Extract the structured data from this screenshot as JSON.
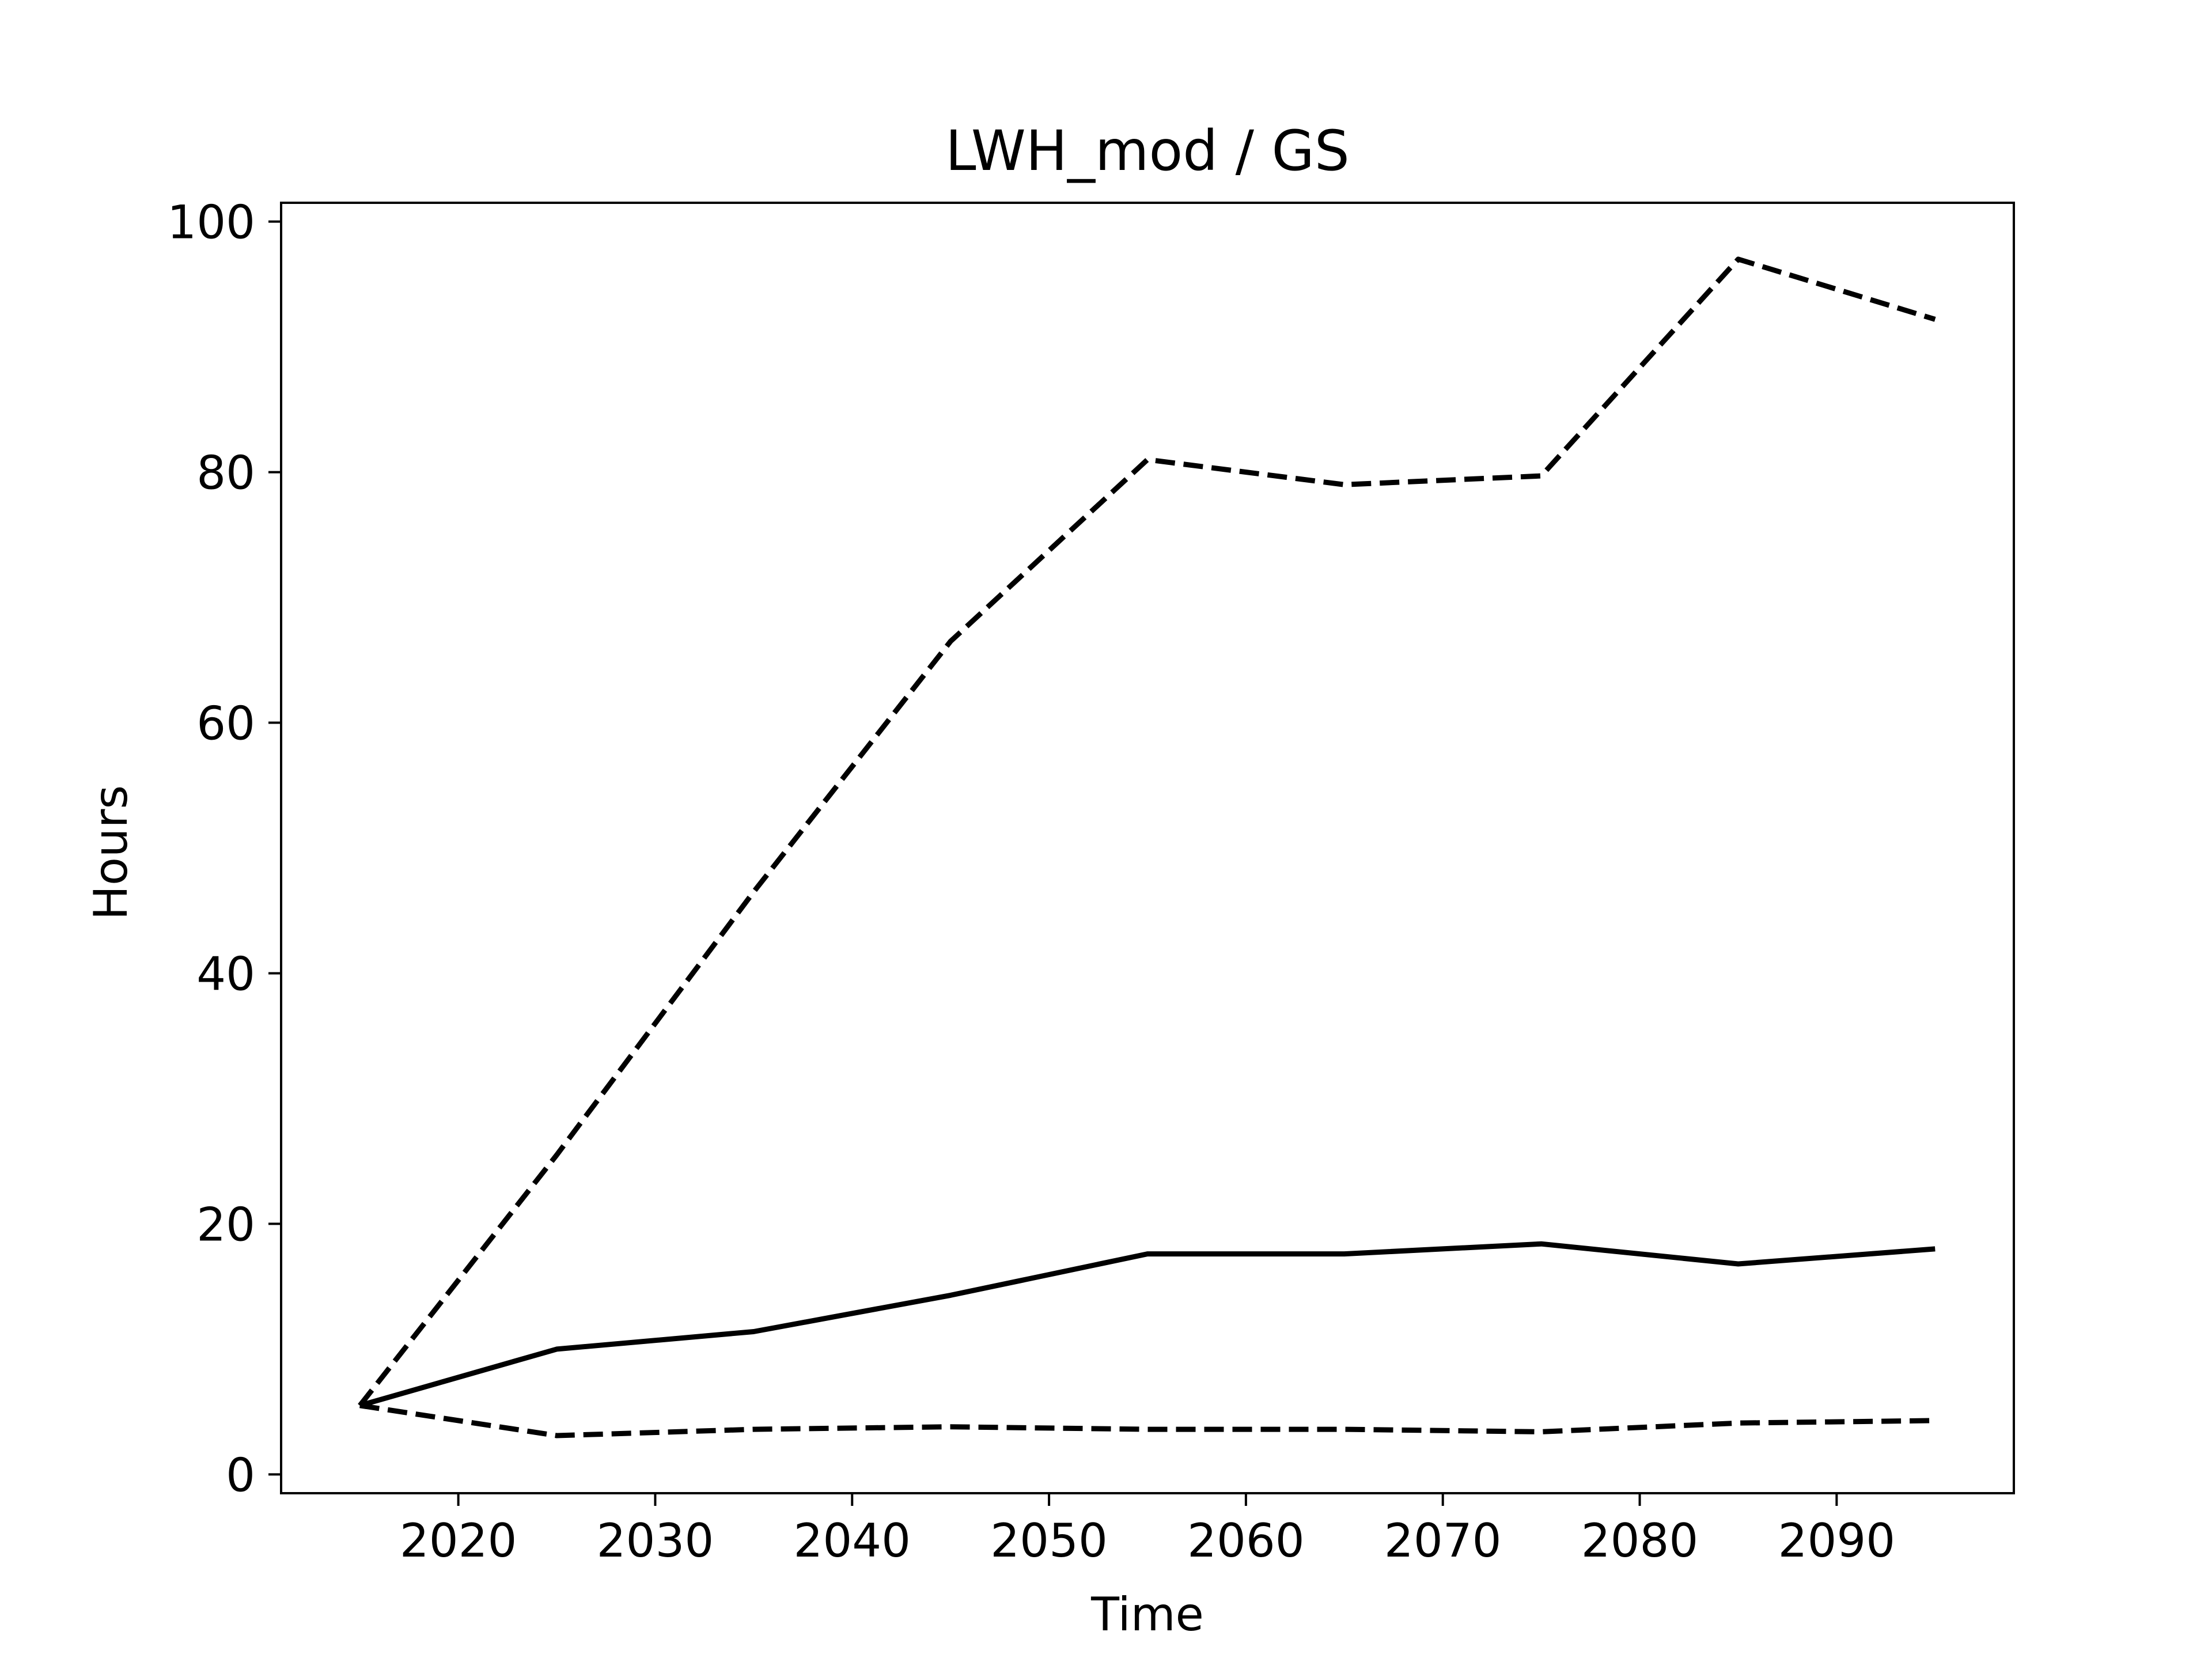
{
  "chart_data": {
    "type": "line",
    "title": "LWH_mod / GS",
    "xlabel": "Time",
    "ylabel": "Hours",
    "xlim": [
      2011,
      2099
    ],
    "ylim": [
      -1.5,
      101.5
    ],
    "xticks": [
      2020,
      2030,
      2040,
      2050,
      2060,
      2070,
      2080,
      2090
    ],
    "yticks": [
      0,
      20,
      40,
      60,
      80,
      100
    ],
    "grid": false,
    "legend": "none",
    "colors": {
      "line": "#000000",
      "axes": "#000000",
      "background": "#ffffff"
    },
    "x": [
      2015,
      2025,
      2035,
      2045,
      2055,
      2065,
      2075,
      2085,
      2095
    ],
    "series": [
      {
        "style": "dashed",
        "values": [
          5.5,
          25.5,
          46.5,
          66.5,
          81.0,
          79.0,
          79.7,
          97.0,
          92.2
        ]
      },
      {
        "style": "solid",
        "values": [
          5.5,
          10.0,
          11.4,
          14.3,
          17.6,
          17.6,
          18.4,
          16.8,
          18.0
        ]
      },
      {
        "style": "dashed",
        "values": [
          5.5,
          3.1,
          3.6,
          3.8,
          3.6,
          3.6,
          3.4,
          4.1,
          4.3
        ]
      }
    ]
  }
}
